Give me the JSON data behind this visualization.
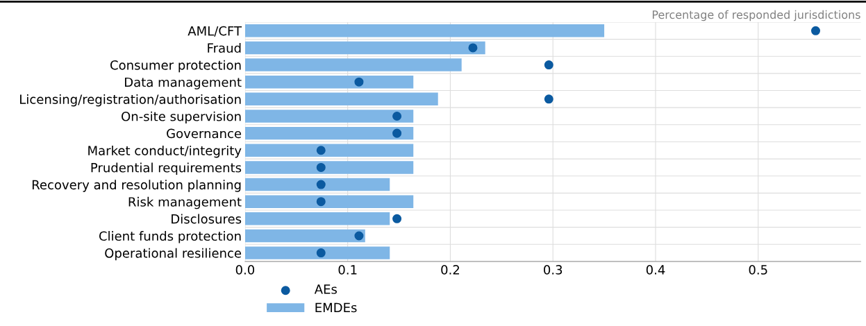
{
  "chart_data": {
    "type": "bar",
    "orientation": "horizontal",
    "categories": [
      "AML/CFT",
      "Fraud",
      "Consumer protection",
      "Data management",
      "Licensing/registration/authorisation",
      "On-site supervision",
      "Governance",
      "Market conduct/integrity",
      "Prudential requirements",
      "Recovery and resolution planning",
      "Risk management",
      "Disclosures",
      "Client funds protection",
      "Operational resilience"
    ],
    "series": [
      {
        "name": "AEs",
        "type": "scatter",
        "color": "#0b5aa0",
        "values": [
          0.556,
          0.222,
          0.296,
          0.111,
          0.296,
          0.148,
          0.148,
          0.074,
          0.074,
          0.074,
          0.074,
          0.148,
          0.111,
          0.074
        ]
      },
      {
        "name": "EMDEs",
        "color": "#7fb6e6",
        "values": [
          0.35,
          0.234,
          0.211,
          0.164,
          0.188,
          0.164,
          0.164,
          0.164,
          0.164,
          0.141,
          0.164,
          0.141,
          0.117,
          0.141
        ]
      }
    ],
    "xlim": [
      0,
      0.6
    ],
    "xticks": [
      {
        "value": 0,
        "label": "0.0"
      },
      0.1,
      0.2,
      0.3,
      0.4,
      0.5
    ],
    "annotations": [
      "Percentage of responded jurisdictions"
    ],
    "grid": true,
    "legend": "bottom left",
    "marker": "circle"
  }
}
